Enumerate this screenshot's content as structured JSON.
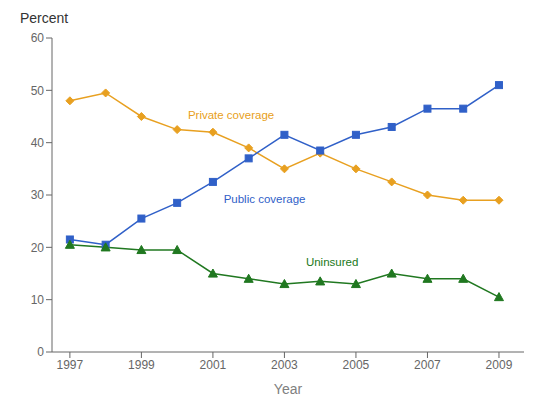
{
  "chart_data": {
    "type": "line",
    "x": [
      1997,
      1998,
      1999,
      2000,
      2001,
      2002,
      2003,
      2004,
      2005,
      2006,
      2007,
      2008,
      2009
    ],
    "series": [
      {
        "name": "Private coverage",
        "color": "#e8a020",
        "marker": "diamond",
        "values": [
          48,
          49.5,
          45,
          42.5,
          42,
          39,
          35,
          38,
          35,
          32.5,
          30,
          29,
          29
        ]
      },
      {
        "name": "Public coverage",
        "color": "#3060c8",
        "marker": "square",
        "values": [
          21.5,
          20.5,
          25.5,
          28.5,
          32.5,
          37,
          41.5,
          38.5,
          41.5,
          43,
          46.5,
          46.5,
          51
        ]
      },
      {
        "name": "Uninsured",
        "color": "#207820",
        "marker": "triangle",
        "values": [
          20.5,
          20,
          19.5,
          19.5,
          15,
          14,
          13,
          13.5,
          13,
          15,
          14,
          14,
          10.5
        ]
      }
    ],
    "xlim": [
      1996.5,
      2009.7
    ],
    "ylim": [
      0,
      60
    ],
    "xticks": [
      1997,
      1999,
      2001,
      2003,
      2005,
      2007,
      2009
    ],
    "yticks": [
      0,
      10,
      20,
      30,
      40,
      50,
      60
    ],
    "xlabel": "Year",
    "ylabel": "Percent",
    "grid": false,
    "annotations": [
      {
        "text": "Private coverage",
        "x": 2000.3,
        "y": 44.5,
        "color": "#e8a020"
      },
      {
        "text": "Public coverage",
        "x": 2001.3,
        "y": 28.5,
        "color": "#3060c8"
      },
      {
        "text": "Uninsured",
        "x": 2003.6,
        "y": 16.5,
        "color": "#207820"
      }
    ]
  }
}
